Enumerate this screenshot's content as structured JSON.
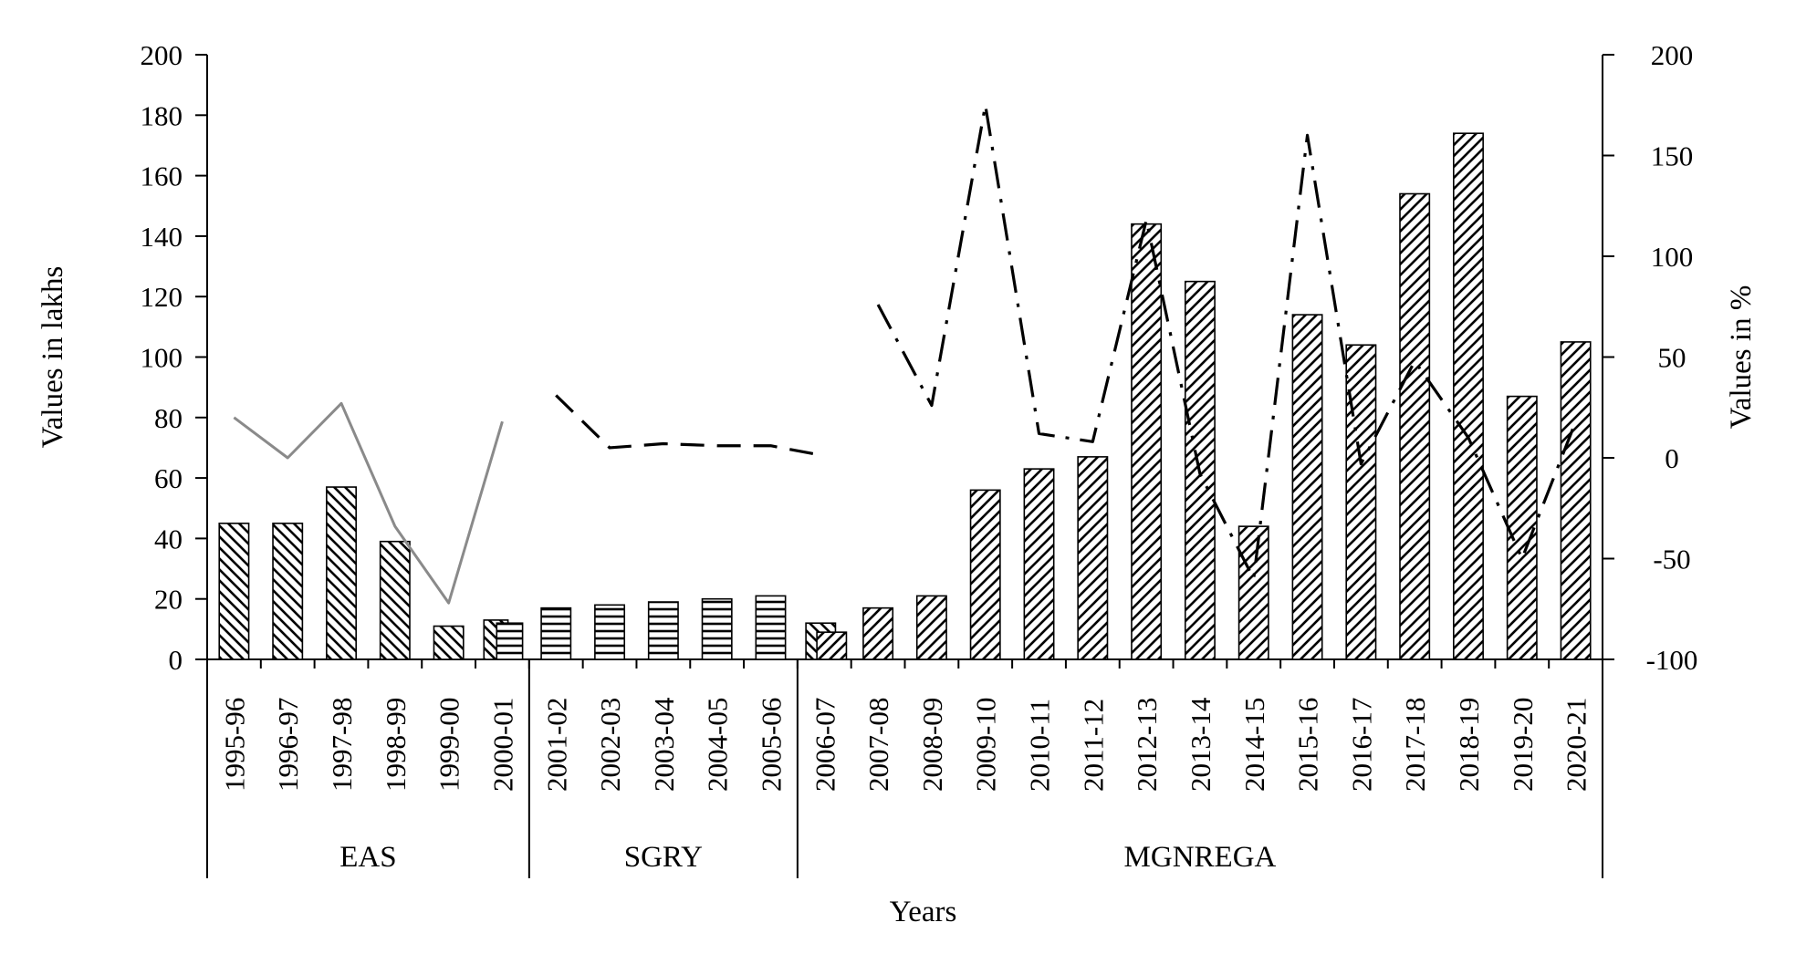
{
  "chart_data": {
    "type": "bar",
    "xlabel": "Years",
    "ylabel": "Values in lakhs",
    "y2label": "Values in %",
    "ylim": [
      0,
      200
    ],
    "y2lim": [
      -100,
      200
    ],
    "yticks": [
      "0",
      "20",
      "40",
      "60",
      "80",
      "100",
      "120",
      "140",
      "160",
      "180",
      "200"
    ],
    "y2ticks": [
      "-100",
      "-50",
      "0",
      "50",
      "100",
      "150",
      "200"
    ],
    "categories": [
      "1995-96",
      "1996-97",
      "1997-98",
      "1998-99",
      "1999-00",
      "2000-01",
      "2001-02",
      "2002-03",
      "2003-04",
      "2004-05",
      "2005-06",
      "2006-07",
      "2007-08",
      "2008-09",
      "2009-10",
      "2010-11",
      "2011-12",
      "2012-13",
      "2013-14",
      "2014-15",
      "2015-16",
      "2016-17",
      "2017-18",
      "2018-19",
      "2019-20",
      "2020-21"
    ],
    "groups": [
      {
        "label": "EAS",
        "start": 0,
        "end": 5
      },
      {
        "label": "SGRY",
        "start": 6,
        "end": 10
      },
      {
        "label": "MGNREGA",
        "start": 11,
        "end": 25
      }
    ],
    "bars": [
      {
        "program": "EAS",
        "pattern": "back-hatch",
        "points": [
          [
            0,
            45
          ],
          [
            1,
            45
          ],
          [
            2,
            57
          ],
          [
            3,
            39
          ],
          [
            4,
            11
          ],
          [
            5,
            13
          ]
        ]
      },
      {
        "program": "SGRY",
        "pattern": "horizontal",
        "points": [
          [
            5,
            12
          ],
          [
            6,
            17
          ],
          [
            7,
            18
          ],
          [
            8,
            19
          ],
          [
            9,
            20
          ],
          [
            10,
            21
          ]
        ]
      },
      {
        "program": "MGNREGA",
        "pattern": "forward-hatch",
        "points": [
          [
            11,
            9
          ],
          [
            12,
            17
          ],
          [
            13,
            21
          ],
          [
            14,
            56
          ],
          [
            15,
            63
          ],
          [
            16,
            67
          ],
          [
            17,
            144
          ],
          [
            18,
            125
          ],
          [
            19,
            44
          ],
          [
            20,
            114
          ],
          [
            21,
            104
          ],
          [
            22,
            154
          ],
          [
            23,
            174
          ],
          [
            24,
            87
          ],
          [
            25,
            105
          ]
        ]
      }
    ],
    "bars_extra": [
      {
        "program": "MGNREGA",
        "pattern": "back-hatch",
        "points": [
          [
            11,
            12
          ]
        ]
      }
    ],
    "lines": [
      {
        "program": "EAS",
        "style": "solid-grey",
        "axis": "right",
        "points": [
          [
            0,
            20
          ],
          [
            1,
            0
          ],
          [
            2,
            27
          ],
          [
            3,
            -34
          ],
          [
            4,
            -72
          ],
          [
            5,
            18
          ]
        ]
      },
      {
        "program": "SGRY",
        "style": "dashed",
        "axis": "right",
        "points": [
          [
            6,
            31
          ],
          [
            7,
            5
          ],
          [
            8,
            7
          ],
          [
            9,
            6
          ],
          [
            10,
            6
          ],
          [
            11,
            1
          ]
        ]
      },
      {
        "program": "MGNREGA",
        "style": "dash-dot",
        "axis": "right",
        "points": [
          [
            12,
            76
          ],
          [
            13,
            26
          ],
          [
            14,
            175
          ],
          [
            15,
            12
          ],
          [
            16,
            8
          ],
          [
            17,
            118
          ],
          [
            18,
            -8
          ],
          [
            19,
            -60
          ],
          [
            20,
            160
          ],
          [
            21,
            -3
          ],
          [
            22,
            48
          ],
          [
            23,
            10
          ],
          [
            24,
            -50
          ],
          [
            25,
            18
          ]
        ]
      }
    ],
    "colors": {
      "axis": "#000000",
      "bar_fill": "#ffffff",
      "bar_stroke": "#000000",
      "eas_line": "#8a8a8a",
      "dash_line": "#000000"
    }
  }
}
